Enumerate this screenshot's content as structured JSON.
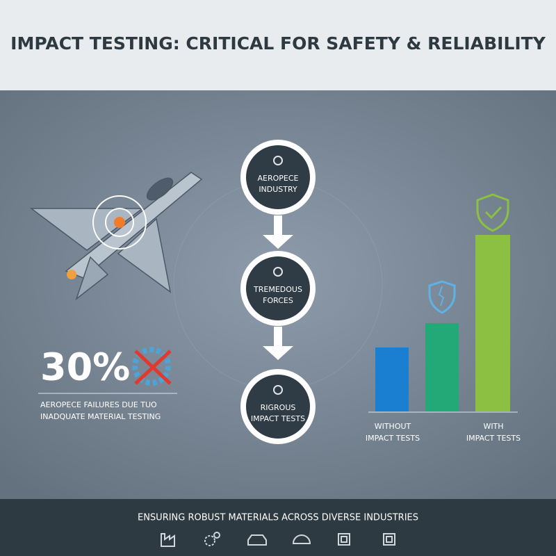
{
  "header": {
    "title": "IMPACT TESTING: CRITICAL FOR SAFETY & RELIABILITY"
  },
  "stat": {
    "value": "30%",
    "lines": [
      "AEROPECE FAILURES DUE TUO",
      "INADQUATE MATERIAL TESTING"
    ]
  },
  "flow": {
    "nodes": [
      {
        "lines": [
          "AEROPECE",
          "INDUSTRY"
        ]
      },
      {
        "lines": [
          "TREMEDOUS",
          "FORCES"
        ]
      },
      {
        "lines": [
          "RIGROUS",
          "IMPACT TESTS"
        ]
      }
    ]
  },
  "comparison": {
    "labels": [
      {
        "lines": [
          "WITHOUT",
          "IMPACT TESTS"
        ]
      },
      {
        "lines": [
          "WITH",
          "IMPACT TESTS"
        ]
      }
    ]
  },
  "footer": {
    "title": "ENSURING ROBUST MATERIALS ACROSS DIVERSE INDUSTRIES"
  }
}
